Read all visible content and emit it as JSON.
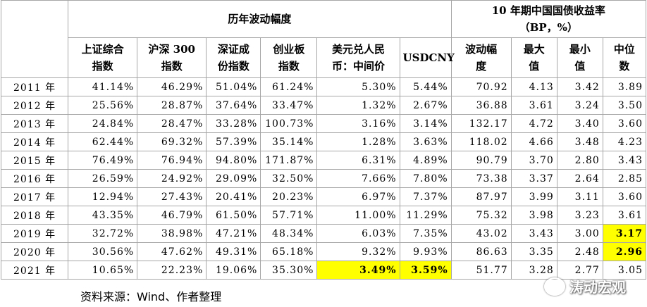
{
  "table": {
    "group_headers": [
      "历年波动幅度",
      "10 年期中国国债收益率\n（BP，%）"
    ],
    "column_headers": [
      "上证综合\n指数",
      "沪深 300\n指数",
      "深证成\n份指数",
      "创业板\n指数",
      "美元兑人民\n币：中间价",
      "USDCNY",
      "波动幅\n度",
      "最大\n值",
      "最小\n值",
      "中位\n数"
    ],
    "rows": [
      [
        "2011 年",
        "41.14%",
        "46.29%",
        "51.04%",
        "61.24%",
        "5.30%",
        "5.44%",
        "70.92",
        "4.13",
        "3.42",
        "3.89"
      ],
      [
        "2012 年",
        "25.56%",
        "28.87%",
        "37.64%",
        "33.47%",
        "1.32%",
        "2.67%",
        "36.88",
        "3.61",
        "3.24",
        "3.50"
      ],
      [
        "2013 年",
        "24.84%",
        "28.47%",
        "33.28%",
        "100.73%",
        "3.16%",
        "3.14%",
        "132.17",
        "4.72",
        "3.40",
        "3.60"
      ],
      [
        "2014 年",
        "62.44%",
        "69.32%",
        "57.39%",
        "35.14%",
        "1.28%",
        "3.63%",
        "118.02",
        "4.66",
        "3.48",
        "4.23"
      ],
      [
        "2015 年",
        "76.49%",
        "76.94%",
        "94.80%",
        "171.87%",
        "6.31%",
        "4.89%",
        "90.79",
        "3.70",
        "2.80",
        "3.43"
      ],
      [
        "2016 年",
        "26.59%",
        "24.92%",
        "29.09%",
        "32.50%",
        "7.66%",
        "7.80%",
        "73.38",
        "3.37",
        "2.64",
        "2.85"
      ],
      [
        "2017 年",
        "12.94%",
        "27.43%",
        "20.41%",
        "20.23%",
        "6.97%",
        "7.37%",
        "87.97",
        "3.99",
        "3.11",
        "3.60"
      ],
      [
        "2018 年",
        "43.35%",
        "46.79%",
        "61.50%",
        "57.71%",
        "11.00%",
        "11.29%",
        "75.32",
        "3.98",
        "3.23",
        "3.61"
      ],
      [
        "2019 年",
        "32.72%",
        "38.98%",
        "47.21%",
        "48.34%",
        "6.03%",
        "7.35%",
        "43.02",
        "3.43",
        "3.00",
        "3.17"
      ],
      [
        "2020 年",
        "30.56%",
        "47.62%",
        "49.31%",
        "65.18%",
        "9.32%",
        "9.93%",
        "86.63",
        "3.35",
        "2.48",
        "2.96"
      ],
      [
        "2021 年",
        "10.65%",
        "22.23%",
        "19.06%",
        "35.30%",
        "3.49%",
        "3.59%",
        "51.77",
        "3.28",
        "2.77",
        "3.05"
      ]
    ],
    "highlights": [
      [
        8,
        10
      ],
      [
        9,
        10
      ],
      [
        10,
        5
      ],
      [
        10,
        6
      ]
    ]
  },
  "source": "资料来源：Wind、作者整理",
  "watermark": "涛动宏观"
}
